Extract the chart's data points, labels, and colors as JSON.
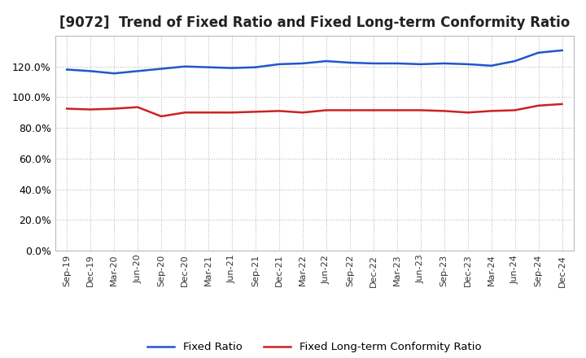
{
  "title": "[9072]  Trend of Fixed Ratio and Fixed Long-term Conformity Ratio",
  "title_fontsize": 12,
  "xlabels": [
    "Sep-19",
    "Dec-19",
    "Mar-20",
    "Jun-20",
    "Sep-20",
    "Dec-20",
    "Mar-21",
    "Jun-21",
    "Sep-21",
    "Dec-21",
    "Mar-22",
    "Jun-22",
    "Sep-22",
    "Dec-22",
    "Mar-23",
    "Jun-23",
    "Sep-23",
    "Dec-23",
    "Mar-24",
    "Jun-24",
    "Sep-24",
    "Dec-24"
  ],
  "fixed_ratio": [
    118.0,
    117.0,
    115.5,
    117.0,
    118.5,
    120.0,
    119.5,
    119.0,
    119.5,
    121.5,
    122.0,
    123.5,
    122.5,
    122.0,
    122.0,
    121.5,
    122.0,
    121.5,
    120.5,
    123.5,
    129.0,
    130.5
  ],
  "fixed_lt_ratio": [
    92.5,
    92.0,
    92.5,
    93.5,
    87.5,
    90.0,
    90.0,
    90.0,
    90.5,
    91.0,
    90.0,
    91.5,
    91.5,
    91.5,
    91.5,
    91.5,
    91.0,
    90.0,
    91.0,
    91.5,
    94.5,
    95.5
  ],
  "line_color_blue": "#2255cc",
  "line_color_red": "#cc2222",
  "background_color": "#ffffff",
  "grid_color": "#bbbbbb",
  "ylim": [
    0,
    140
  ],
  "yticks": [
    0,
    20,
    40,
    60,
    80,
    100,
    120
  ],
  "legend_fixed_ratio": "Fixed Ratio",
  "legend_fixed_lt_ratio": "Fixed Long-term Conformity Ratio"
}
